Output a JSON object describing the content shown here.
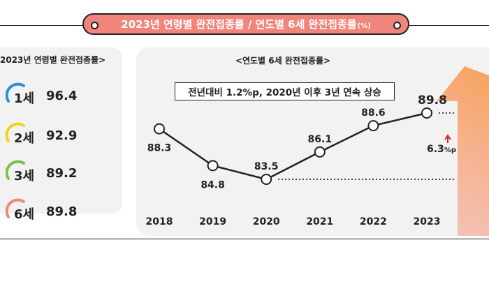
{
  "header": {
    "title": "2023년 연령별 완전접종률 / 연도별 6세 완전접종률",
    "title_unit": "(%)"
  },
  "left_panel": {
    "title": "2023년 연령별 완전접종률>",
    "items": [
      {
        "label": "1세",
        "value": "96.4",
        "color": "#2a8fd6"
      },
      {
        "label": "2세",
        "value": "92.9",
        "color": "#f2d21b"
      },
      {
        "label": "3세",
        "value": "89.2",
        "color": "#7cc04b"
      },
      {
        "label": "6세",
        "value": "89.8",
        "color": "#f0857b"
      }
    ]
  },
  "chart_data": {
    "type": "line",
    "title": "<연도별 6세 완전접종률>",
    "x": [
      "2018",
      "2019",
      "2020",
      "2021",
      "2022",
      "2023"
    ],
    "series": [
      {
        "values": [
          88.3,
          84.8,
          83.5,
          86.1,
          88.6,
          89.8
        ]
      }
    ],
    "annotation": "전년대비 1.2%p, 2020년 이후 3년 연속 상승",
    "change_value": "6.3",
    "change_unit": "%p",
    "reference_lines": [
      89.8,
      83.5
    ],
    "arrow_color": "#f0857b",
    "line_color": "#222222"
  }
}
